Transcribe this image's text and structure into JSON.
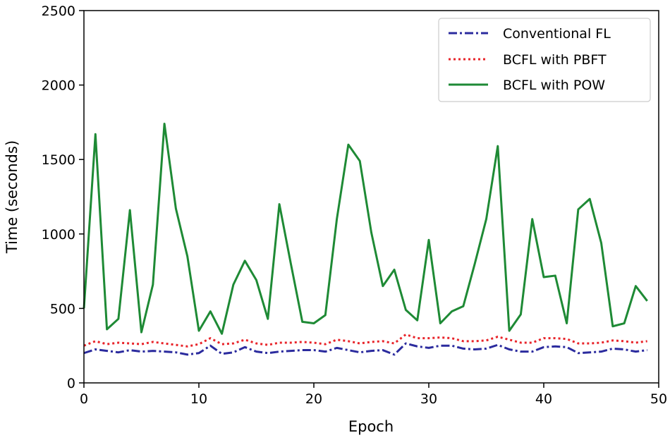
{
  "chart_data": {
    "type": "line",
    "title": "",
    "xlabel": "Epoch",
    "ylabel": "Time (seconds)",
    "xlim": [
      0,
      50
    ],
    "ylim": [
      0,
      2500
    ],
    "xticks": [
      "0",
      "10",
      "20",
      "30",
      "40",
      "50"
    ],
    "yticks": [
      "0",
      "500",
      "1000",
      "1500",
      "2000",
      "2500"
    ],
    "grid": false,
    "legend_position": "top-right",
    "x": [
      0,
      1,
      2,
      3,
      4,
      5,
      6,
      7,
      8,
      9,
      10,
      11,
      12,
      13,
      14,
      15,
      16,
      17,
      18,
      19,
      20,
      21,
      22,
      23,
      24,
      25,
      26,
      27,
      28,
      29,
      30,
      31,
      32,
      33,
      34,
      35,
      36,
      37,
      38,
      39,
      40,
      41,
      42,
      43,
      44,
      45,
      46,
      47,
      48,
      49
    ],
    "series": [
      {
        "name": "Conventional FL",
        "color": "#2b2b9e",
        "style": "dashdot",
        "values": [
          200,
          225,
          215,
          205,
          220,
          210,
          215,
          210,
          205,
          190,
          200,
          250,
          195,
          205,
          240,
          210,
          200,
          210,
          215,
          220,
          220,
          210,
          235,
          220,
          205,
          215,
          220,
          190,
          265,
          245,
          235,
          250,
          250,
          230,
          225,
          230,
          255,
          225,
          210,
          210,
          240,
          245,
          240,
          200,
          205,
          210,
          230,
          225,
          210,
          220
        ]
      },
      {
        "name": "BCFL with PBFT",
        "color": "#e8242a",
        "style": "dotted",
        "values": [
          250,
          280,
          260,
          270,
          265,
          260,
          275,
          265,
          255,
          245,
          260,
          300,
          260,
          265,
          290,
          265,
          255,
          270,
          270,
          275,
          270,
          260,
          290,
          280,
          265,
          275,
          280,
          265,
          325,
          300,
          300,
          305,
          300,
          280,
          280,
          285,
          310,
          290,
          270,
          270,
          300,
          300,
          295,
          265,
          265,
          270,
          285,
          280,
          270,
          280
        ]
      },
      {
        "name": "BCFL with POW",
        "color": "#1e8a35",
        "style": "solid",
        "values": [
          500,
          1670,
          360,
          430,
          1160,
          340,
          660,
          1740,
          1170,
          850,
          350,
          480,
          330,
          660,
          820,
          690,
          430,
          1200,
          800,
          410,
          400,
          455,
          1100,
          1600,
          1490,
          1010,
          650,
          760,
          490,
          420,
          960,
          400,
          480,
          515,
          800,
          1100,
          1590,
          350,
          460,
          1100,
          710,
          720,
          400,
          1165,
          1235,
          940,
          380,
          400,
          650,
          550
        ]
      }
    ]
  }
}
